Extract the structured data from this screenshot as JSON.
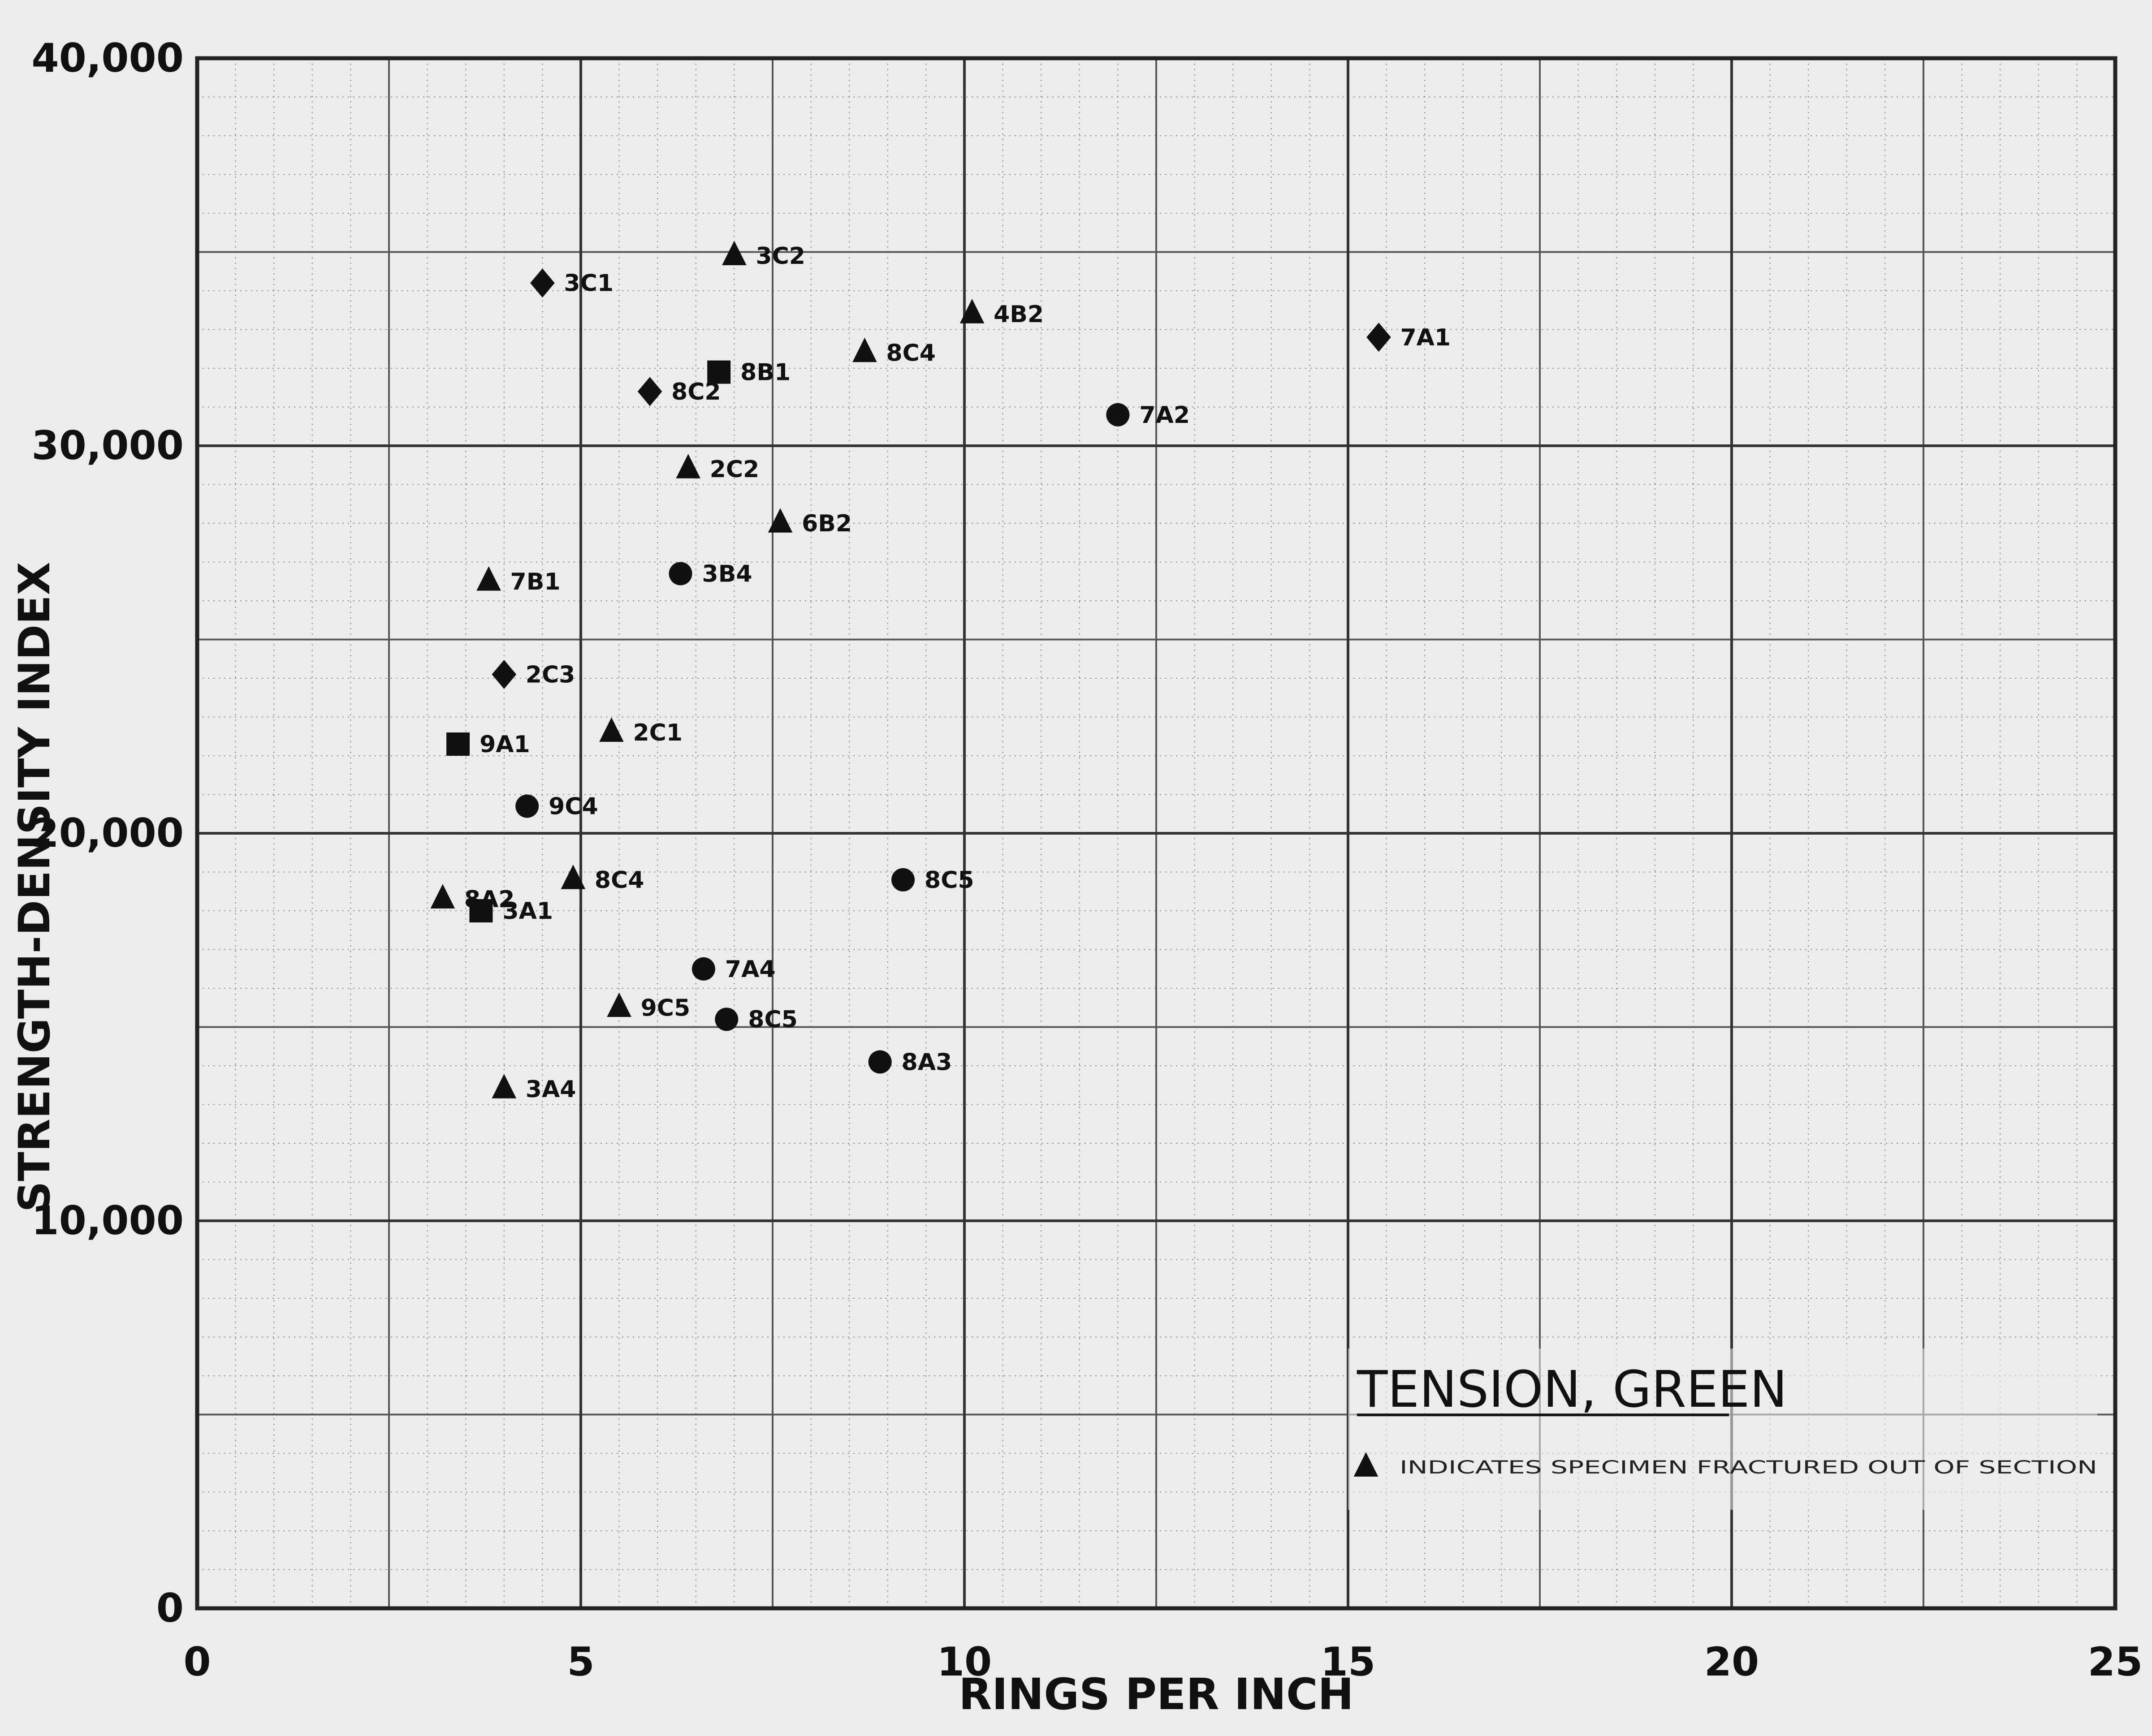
{
  "chart_data": {
    "type": "scatter",
    "xlabel": "RINGS PER INCH",
    "ylabel": "STRENGTH-DENSITY INDEX",
    "xlim": [
      0,
      25
    ],
    "ylim": [
      0,
      40000
    ],
    "x_ticks": [
      0,
      5,
      10,
      15,
      20,
      25
    ],
    "x_tick_labels": [
      "0",
      "5",
      "10",
      "15",
      "20",
      "25"
    ],
    "y_ticks": [
      0,
      10000,
      20000,
      30000,
      40000
    ],
    "y_tick_labels": [
      "0",
      "10,000",
      "20,000",
      "30,000",
      "40,000"
    ],
    "grid": true,
    "legend": {
      "title": "TENSION, GREEN",
      "note": "INDICATES SPECIMEN FRACTURED OUT OF SECTION",
      "placement": "bottom-right"
    },
    "points": [
      {
        "label": "3C1",
        "x": 4.5,
        "y": 34200,
        "marker": "diamond"
      },
      {
        "label": "3C2",
        "x": 7.0,
        "y": 34900,
        "marker": "triangle"
      },
      {
        "label": "4B2",
        "x": 10.1,
        "y": 33400,
        "marker": "triangle"
      },
      {
        "label": "8C4",
        "x": 8.7,
        "y": 32400,
        "marker": "triangle"
      },
      {
        "label": "7A1",
        "x": 15.4,
        "y": 32800,
        "marker": "diamond"
      },
      {
        "label": "8B1",
        "x": 6.8,
        "y": 31900,
        "marker": "square"
      },
      {
        "label": "8C2",
        "x": 5.9,
        "y": 31400,
        "marker": "diamond"
      },
      {
        "label": "7A2",
        "x": 12.0,
        "y": 30800,
        "marker": "circle"
      },
      {
        "label": "2C2",
        "x": 6.4,
        "y": 29400,
        "marker": "triangle"
      },
      {
        "label": "6B2",
        "x": 7.6,
        "y": 28000,
        "marker": "triangle"
      },
      {
        "label": "3B4",
        "x": 6.3,
        "y": 26700,
        "marker": "circle"
      },
      {
        "label": "7B1",
        "x": 3.8,
        "y": 26500,
        "marker": "triangle"
      },
      {
        "label": "2C3",
        "x": 4.0,
        "y": 24100,
        "marker": "diamond"
      },
      {
        "label": "2C1",
        "x": 5.4,
        "y": 22600,
        "marker": "triangle"
      },
      {
        "label": "9A1",
        "x": 3.4,
        "y": 22300,
        "marker": "square"
      },
      {
        "label": "9C4",
        "x": 4.3,
        "y": 20700,
        "marker": "circle"
      },
      {
        "label": "8A2",
        "x": 3.2,
        "y": 18300,
        "marker": "triangle"
      },
      {
        "label": "3A1",
        "x": 3.7,
        "y": 18000,
        "marker": "square"
      },
      {
        "label": "8C4",
        "x": 4.9,
        "y": 18800,
        "marker": "triangle"
      },
      {
        "label": "8C5",
        "x": 9.2,
        "y": 18800,
        "marker": "circle"
      },
      {
        "label": "7A4",
        "x": 6.6,
        "y": 16500,
        "marker": "circle"
      },
      {
        "label": "9C5",
        "x": 5.5,
        "y": 15500,
        "marker": "triangle"
      },
      {
        "label": "8C5",
        "x": 6.9,
        "y": 15200,
        "marker": "circle"
      },
      {
        "label": "8A3",
        "x": 8.9,
        "y": 14100,
        "marker": "circle"
      },
      {
        "label": "3A4",
        "x": 4.0,
        "y": 13400,
        "marker": "triangle"
      }
    ]
  }
}
